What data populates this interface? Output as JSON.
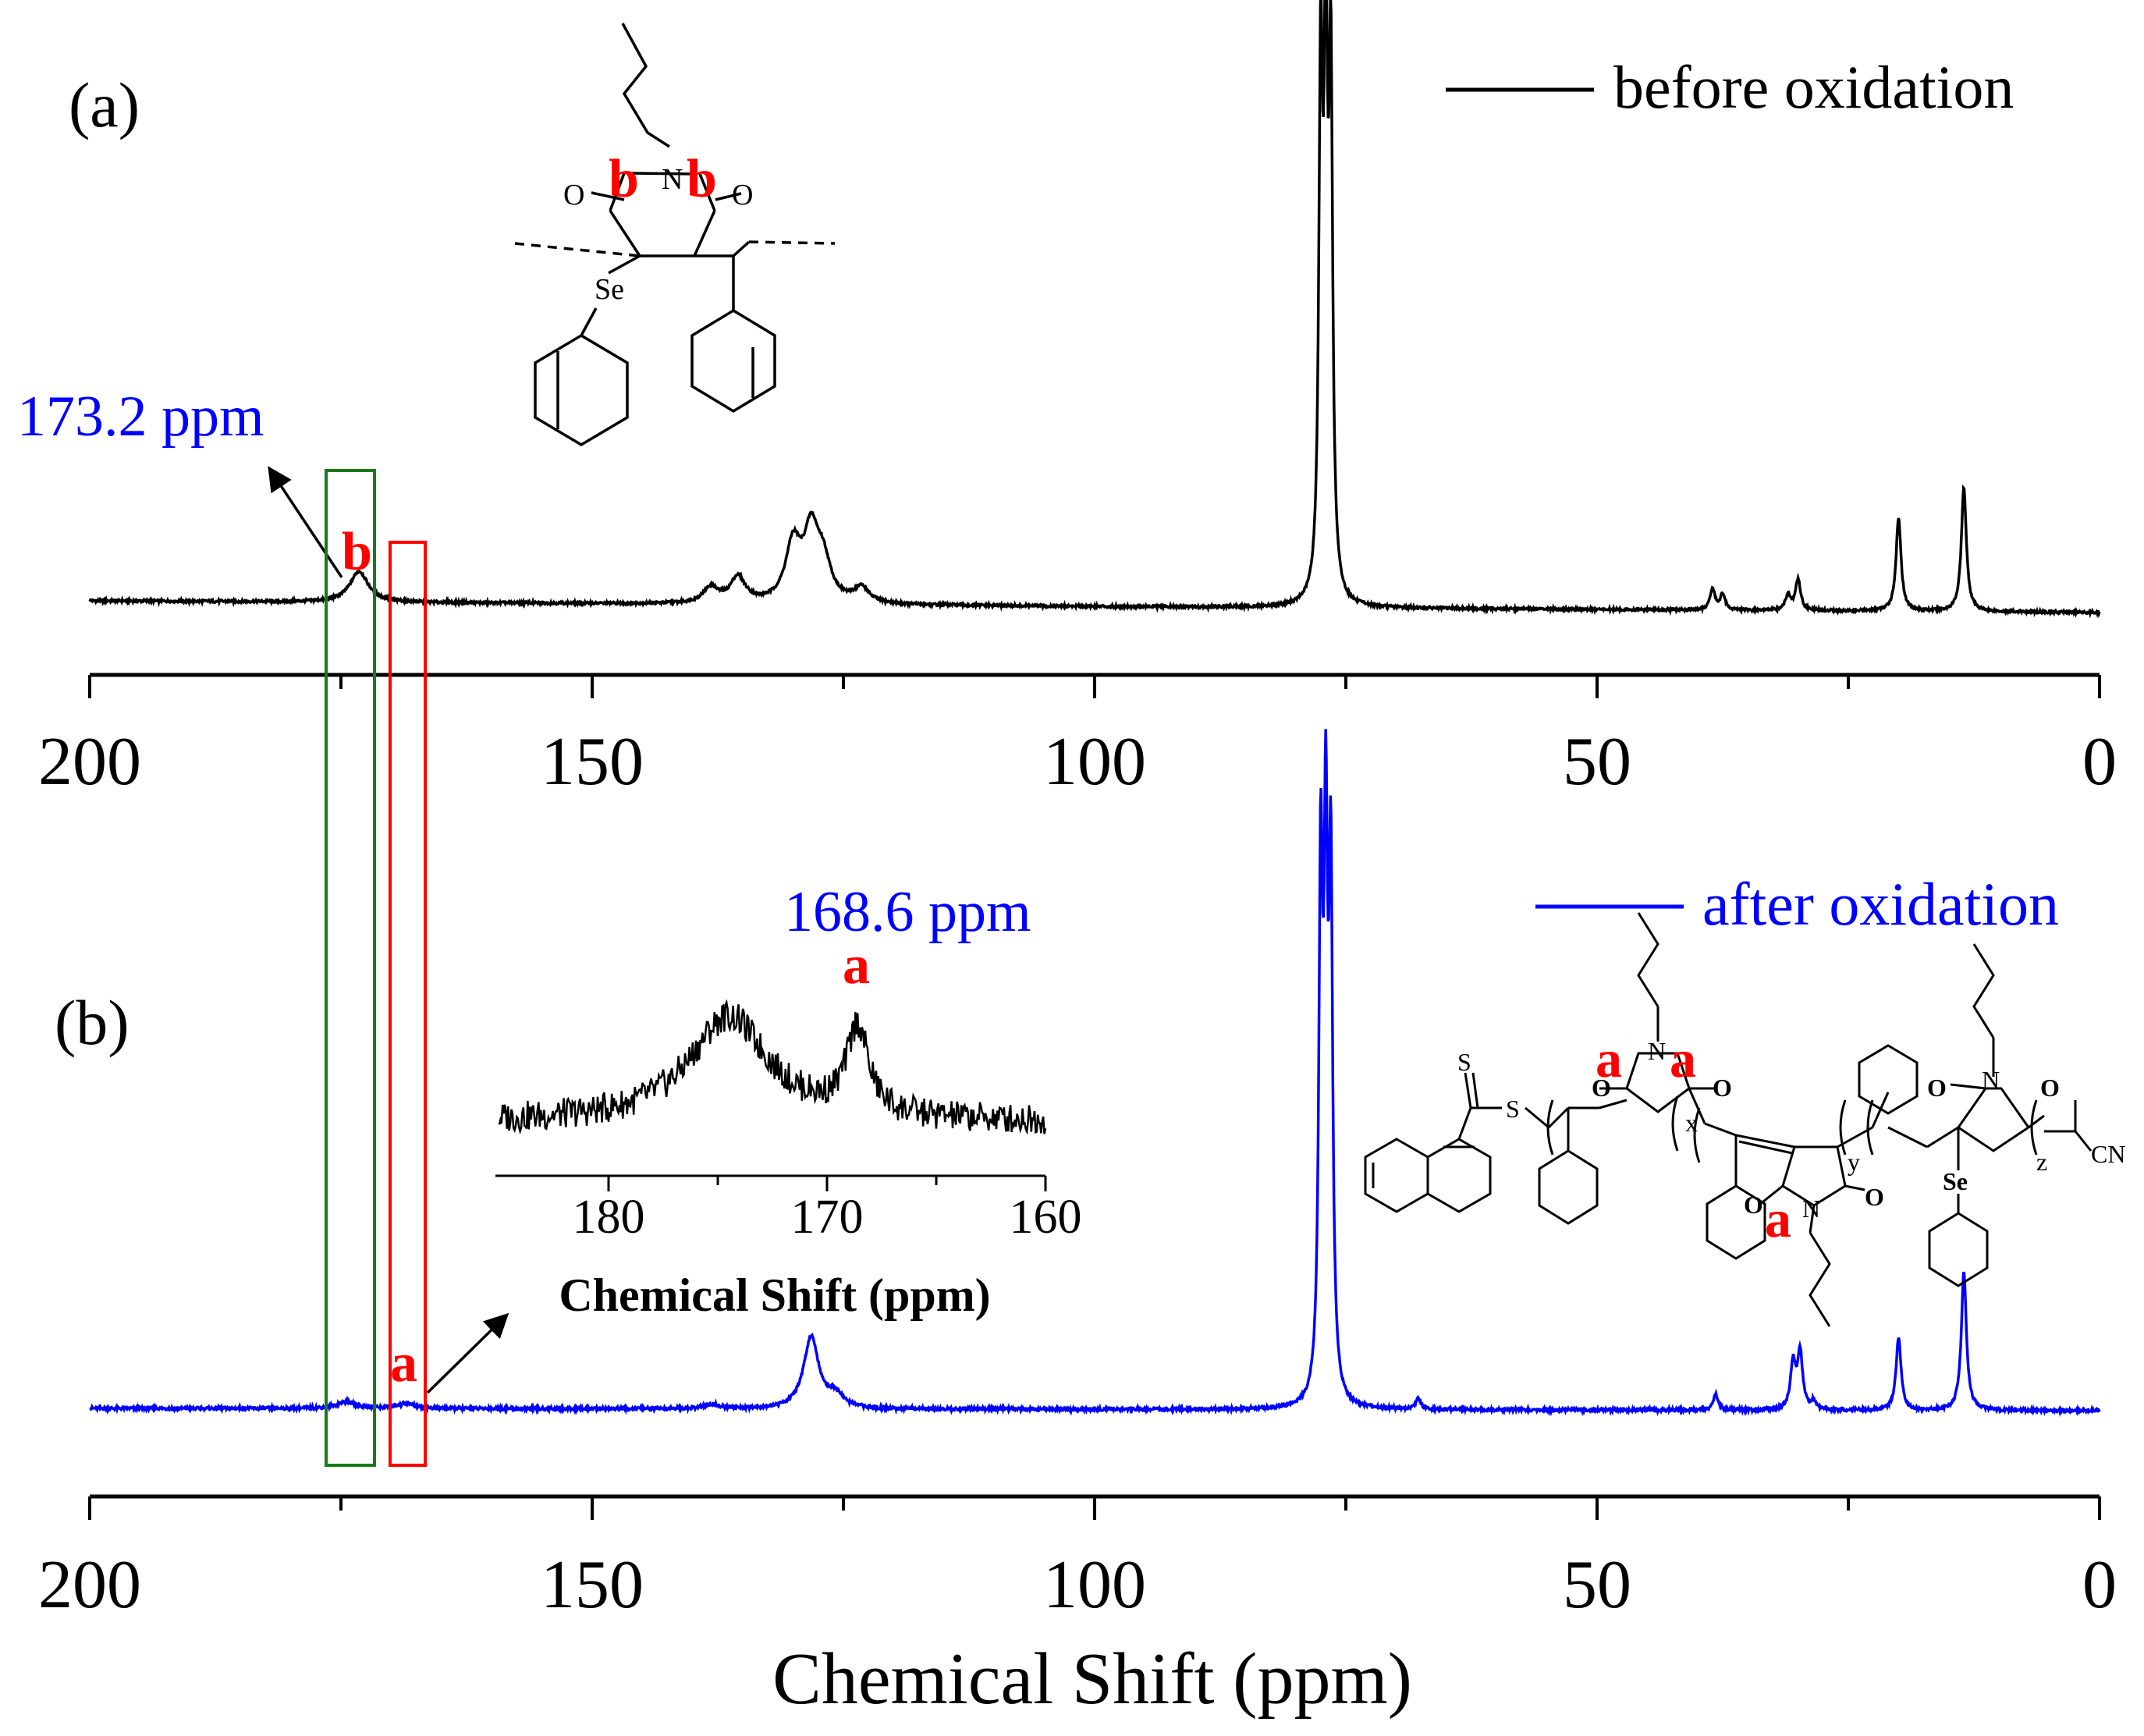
{
  "colors": {
    "before": "#000000",
    "after": "#0000ff",
    "label": "#ff0000",
    "box_green": "#1a7a1a",
    "box_red": "#ff0000"
  },
  "chart_data": [
    {
      "id": "panel-a",
      "type": "line",
      "panel_label": "(a)",
      "legend": "before oxidation",
      "xlim": [
        200,
        0
      ],
      "x_ticks": [
        200,
        150,
        100,
        50,
        0
      ],
      "annotation": "173.2 ppm",
      "peak_label": "b",
      "series": [
        {
          "name": "before oxidation",
          "peaks": [
            {
              "ppm": 173.2,
              "height": 0.06
            },
            {
              "ppm": 138.2,
              "height": 0.03
            },
            {
              "ppm": 135.5,
              "height": 0.05
            },
            {
              "ppm": 130.0,
              "height": 0.11
            },
            {
              "ppm": 128.2,
              "height": 0.13
            },
            {
              "ppm": 127.0,
              "height": 0.07
            },
            {
              "ppm": 123.2,
              "height": 0.03
            },
            {
              "ppm": 77.5,
              "height": 1.0
            },
            {
              "ppm": 77.0,
              "height": 1.0
            },
            {
              "ppm": 76.5,
              "height": 0.98
            },
            {
              "ppm": 38.5,
              "height": 0.04
            },
            {
              "ppm": 37.5,
              "height": 0.03
            },
            {
              "ppm": 31.0,
              "height": 0.03
            },
            {
              "ppm": 30.0,
              "height": 0.06
            },
            {
              "ppm": 20.0,
              "height": 0.18
            },
            {
              "ppm": 13.5,
              "height": 0.24
            }
          ]
        }
      ]
    },
    {
      "id": "panel-b",
      "type": "line",
      "panel_label": "(b)",
      "legend": "after oxidation",
      "xlim": [
        200,
        0
      ],
      "x_ticks": [
        200,
        150,
        100,
        50,
        0
      ],
      "xlabel": "Chemical Shift (ppm)",
      "annotation": "168.6 ppm",
      "peak_label": "a",
      "series": [
        {
          "name": "after oxidation",
          "peaks": [
            {
              "ppm": 174.5,
              "height": 0.013
            },
            {
              "ppm": 168.6,
              "height": 0.01
            },
            {
              "ppm": 138.0,
              "height": 0.008
            },
            {
              "ppm": 128.2,
              "height": 0.14
            },
            {
              "ppm": 125.8,
              "height": 0.025
            },
            {
              "ppm": 77.5,
              "height": 1.0
            },
            {
              "ppm": 77.0,
              "height": 1.0
            },
            {
              "ppm": 76.5,
              "height": 0.98
            },
            {
              "ppm": 67.8,
              "height": 0.02
            },
            {
              "ppm": 38.2,
              "height": 0.03
            },
            {
              "ppm": 30.5,
              "height": 0.09
            },
            {
              "ppm": 29.8,
              "height": 0.11
            },
            {
              "ppm": 28.5,
              "height": 0.015
            },
            {
              "ppm": 20.0,
              "height": 0.14
            },
            {
              "ppm": 13.5,
              "height": 0.27
            }
          ]
        }
      ]
    },
    {
      "id": "inset",
      "type": "line",
      "xlim": [
        185,
        160
      ],
      "x_ticks": [
        180,
        170,
        160
      ],
      "xlabel": "Chemical Shift (ppm)",
      "peak_label": "a",
      "series": [
        {
          "name": "inset",
          "peaks": [
            {
              "ppm": 174.5,
              "height": 0.75
            },
            {
              "ppm": 168.6,
              "height": 0.62
            }
          ]
        }
      ]
    }
  ],
  "structure_a": {
    "atom_N": "N",
    "atom_O1": "O",
    "atom_O2": "O",
    "atom_Se": "Se",
    "label_b1": "b",
    "label_b2": "b"
  },
  "structure_b": {
    "atom_S1": "S",
    "atom_S2": "S",
    "atom_N1": "N",
    "atom_O1": "O",
    "atom_O2": "O",
    "atom_N2": "N",
    "atom_O3": "O",
    "atom_O4": "O",
    "atom_N3": "N",
    "atom_O5": "O",
    "atom_O6": "O",
    "atom_Se": "Se",
    "atom_CN": "CN",
    "sub_x": "x",
    "sub_y": "y",
    "sub_z": "z",
    "label_a1": "a",
    "label_a2": "a",
    "label_a3": "a"
  }
}
